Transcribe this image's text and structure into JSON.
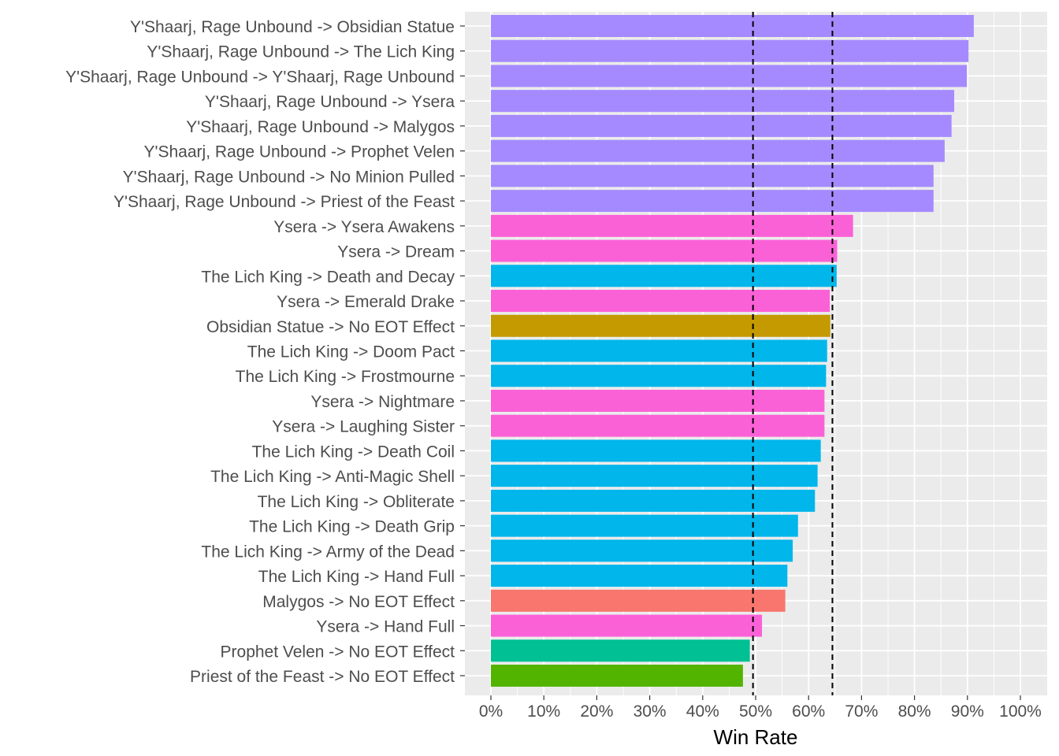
{
  "chart_data": {
    "type": "bar",
    "orientation": "horizontal",
    "xlabel": "Win Rate",
    "ylabel": "",
    "xlim": [
      0,
      1
    ],
    "x_ticks": [
      "0%",
      "10%",
      "20%",
      "30%",
      "40%",
      "50%",
      "60%",
      "70%",
      "80%",
      "90%",
      "100%"
    ],
    "reference_lines": [
      0.495,
      0.645
    ],
    "grid": true,
    "legend": "none",
    "bars": [
      {
        "label": "Y'Shaarj, Rage Unbound -> Obsidian Statue",
        "value": 0.912,
        "color": "#A58AFF"
      },
      {
        "label": "Y'Shaarj, Rage Unbound -> The Lich King",
        "value": 0.902,
        "color": "#A58AFF"
      },
      {
        "label": "Y'Shaarj, Rage Unbound -> Y'Shaarj, Rage Unbound",
        "value": 0.899,
        "color": "#A58AFF"
      },
      {
        "label": "Y'Shaarj, Rage Unbound -> Ysera",
        "value": 0.875,
        "color": "#A58AFF"
      },
      {
        "label": "Y'Shaarj, Rage Unbound -> Malygos",
        "value": 0.87,
        "color": "#A58AFF"
      },
      {
        "label": "Y'Shaarj, Rage Unbound -> Prophet Velen",
        "value": 0.857,
        "color": "#A58AFF"
      },
      {
        "label": "Y'Shaarj, Rage Unbound -> No Minion Pulled",
        "value": 0.836,
        "color": "#A58AFF"
      },
      {
        "label": "Y'Shaarj, Rage Unbound -> Priest of the Feast",
        "value": 0.836,
        "color": "#A58AFF"
      },
      {
        "label": "Ysera -> Ysera Awakens",
        "value": 0.684,
        "color": "#FB61D7"
      },
      {
        "label": "Ysera -> Dream",
        "value": 0.654,
        "color": "#FB61D7"
      },
      {
        "label": "The Lich King -> Death and Decay",
        "value": 0.653,
        "color": "#00B6EB"
      },
      {
        "label": "Ysera -> Emerald Drake",
        "value": 0.64,
        "color": "#FB61D7"
      },
      {
        "label": "Obsidian Statue -> No EOT Effect",
        "value": 0.641,
        "color": "#C49A00"
      },
      {
        "label": "The Lich King -> Doom Pact",
        "value": 0.635,
        "color": "#00B6EB"
      },
      {
        "label": "The Lich King -> Frostmourne",
        "value": 0.633,
        "color": "#00B6EB"
      },
      {
        "label": "Ysera -> Nightmare",
        "value": 0.63,
        "color": "#FB61D7"
      },
      {
        "label": "Ysera -> Laughing Sister",
        "value": 0.63,
        "color": "#FB61D7"
      },
      {
        "label": "The Lich King -> Death Coil",
        "value": 0.623,
        "color": "#00B6EB"
      },
      {
        "label": "The Lich King -> Anti-Magic Shell",
        "value": 0.617,
        "color": "#00B6EB"
      },
      {
        "label": "The Lich King -> Obliterate",
        "value": 0.612,
        "color": "#00B6EB"
      },
      {
        "label": "The Lich King -> Death Grip",
        "value": 0.58,
        "color": "#00B6EB"
      },
      {
        "label": "The Lich King -> Army of the Dead",
        "value": 0.57,
        "color": "#00B6EB"
      },
      {
        "label": "The Lich King -> Hand Full",
        "value": 0.56,
        "color": "#00B6EB"
      },
      {
        "label": "Malygos -> No EOT Effect",
        "value": 0.556,
        "color": "#F8766D"
      },
      {
        "label": "Ysera -> Hand Full",
        "value": 0.512,
        "color": "#FB61D7"
      },
      {
        "label": "Prophet Velen -> No EOT Effect",
        "value": 0.489,
        "color": "#00C094"
      },
      {
        "label": "Priest of the Feast -> No EOT Effect",
        "value": 0.476,
        "color": "#53B400"
      }
    ]
  }
}
